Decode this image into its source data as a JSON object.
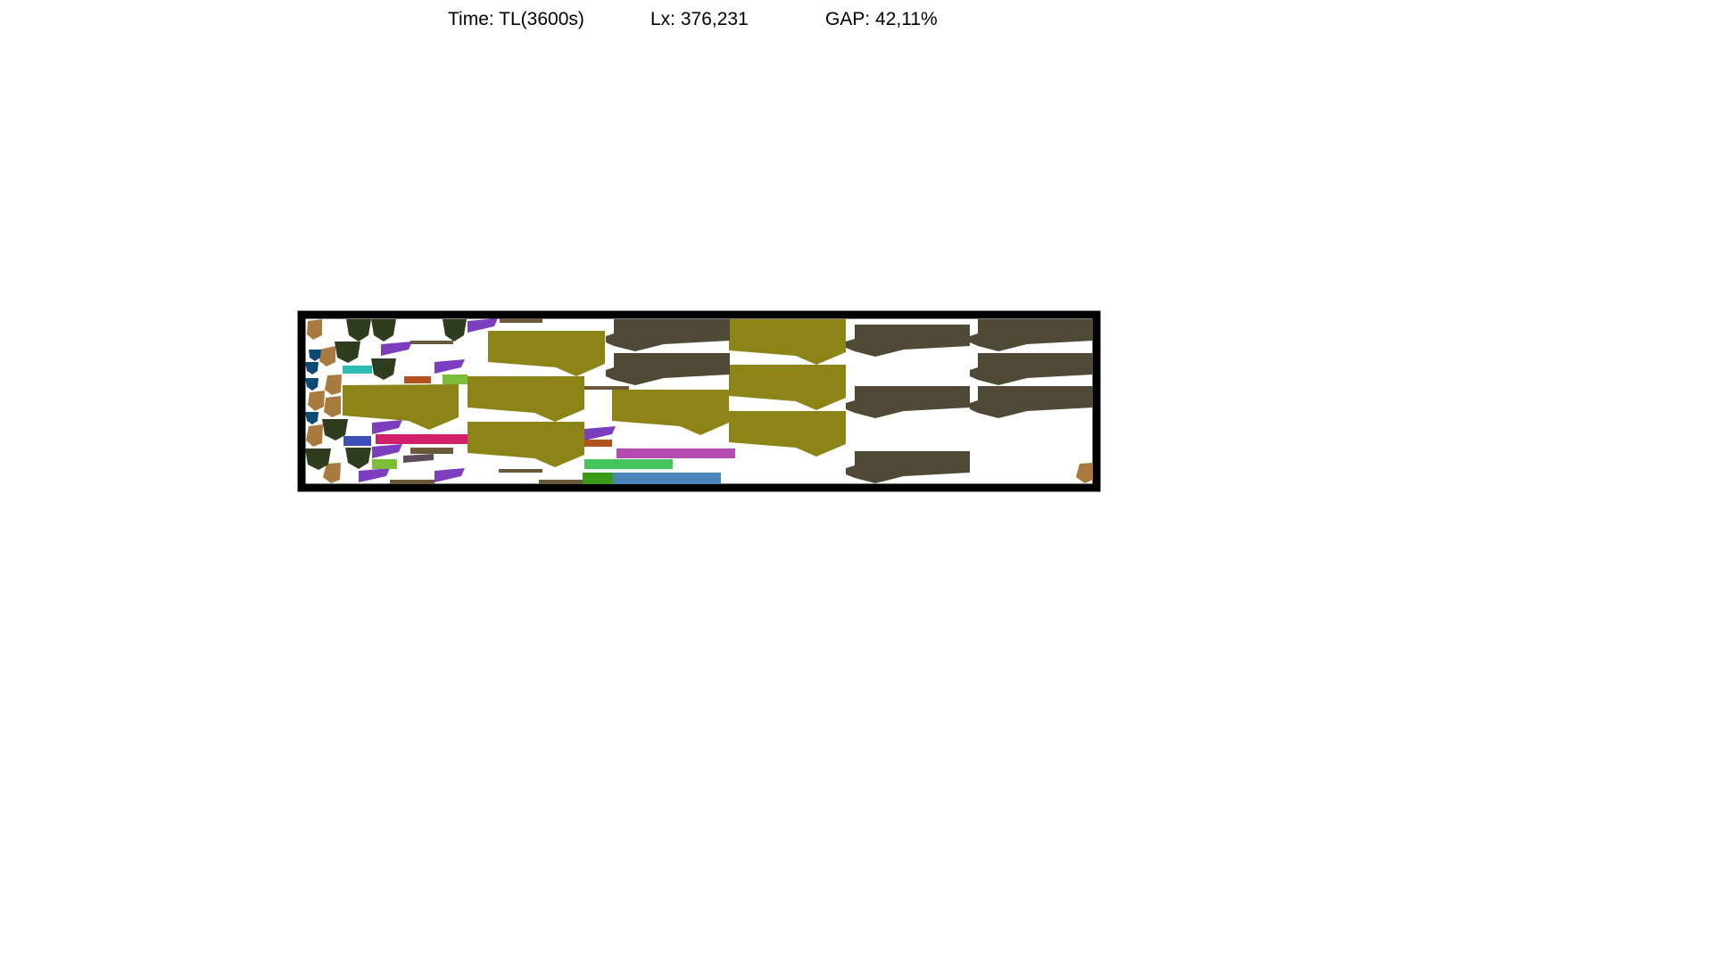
{
  "header": {
    "time": "Time: TL(3600s)",
    "length": "Lx: 376,231",
    "gap": "GAP: 42,11%"
  },
  "colors": {
    "sheet_border": "#000000",
    "sheet_fill": "#ffffff",
    "brown_pentagon": "#a87a3e",
    "dark_green": "#2e3d1e",
    "navy": "#0d4a73",
    "purple": "#7c3dbf",
    "cyan": "#2bbcb4",
    "orange": "#b4521d",
    "lime": "#7cbd3a",
    "olive_brown": "#6b5a3a",
    "olive": "#8c8416",
    "dark_olive": "#4e4a36",
    "crimson": "#d01f6b",
    "blue": "#3a4fb8",
    "magenta": "#b54bb0",
    "green": "#45c35c",
    "dark_green2": "#3a9a1a",
    "steel_blue": "#4a86b8",
    "grey_purple": "#5e4c5c"
  }
}
